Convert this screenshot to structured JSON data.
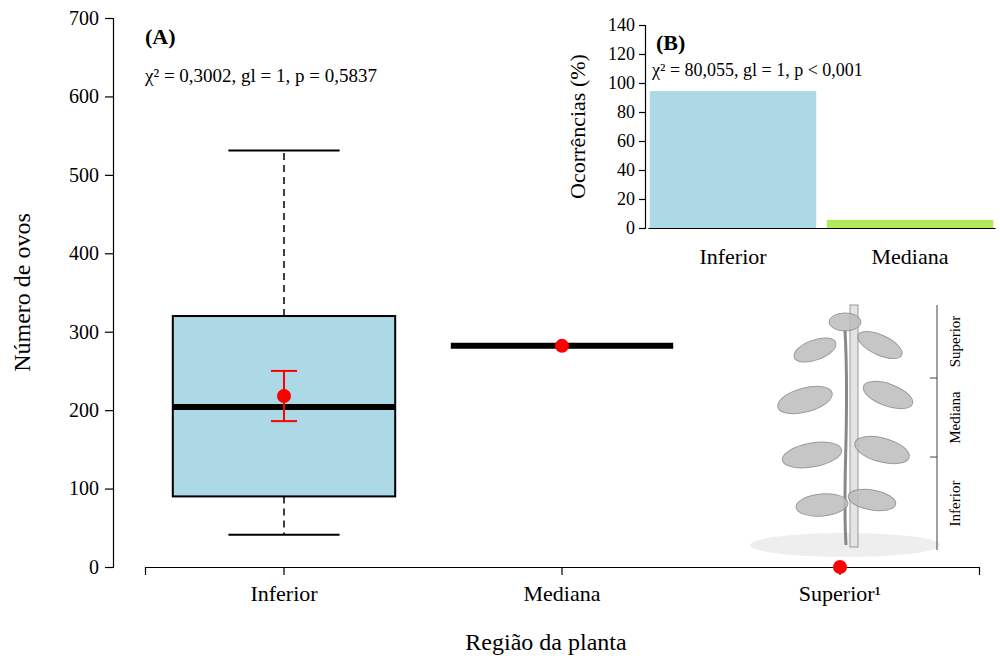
{
  "chart_data": [
    {
      "type": "box",
      "panel_label": "(A)",
      "annotation": "χ² = 0,3002, gl = 1, p = 0,5837",
      "x_label": "Região da planta",
      "y_label": "Número de ovos",
      "categories": [
        "Inferior",
        "Mediana",
        "Superior¹"
      ],
      "boxes": [
        {
          "min": 41,
          "q1": 90,
          "median": 204,
          "q3": 320,
          "max": 531
        },
        {
          "min": 282,
          "q1": 282,
          "median": 282,
          "q3": 282,
          "max": 282
        },
        null
      ],
      "means": [
        218,
        282,
        0
      ],
      "mean_errors": [
        32,
        null,
        null
      ],
      "color": "#add8e6",
      "ylim": [
        0,
        700
      ],
      "yticks": [
        0,
        100,
        200,
        300,
        400,
        500,
        600,
        700
      ]
    },
    {
      "type": "bar",
      "panel_label": "(B)",
      "annotation": "χ² = 80,055, gl = 1, p < 0,001",
      "y_label": "Ocorrências (%)",
      "categories": [
        "Inferior",
        "Mediana"
      ],
      "values": [
        94.4,
        5.6
      ],
      "colors": [
        "#add8e6",
        "#b2e85a"
      ],
      "ylim": [
        0,
        140
      ],
      "yticks": [
        0,
        20,
        40,
        60,
        80,
        100,
        120,
        140
      ]
    }
  ],
  "plant_regions": [
    "Inferior",
    "Mediana",
    "Superior"
  ]
}
